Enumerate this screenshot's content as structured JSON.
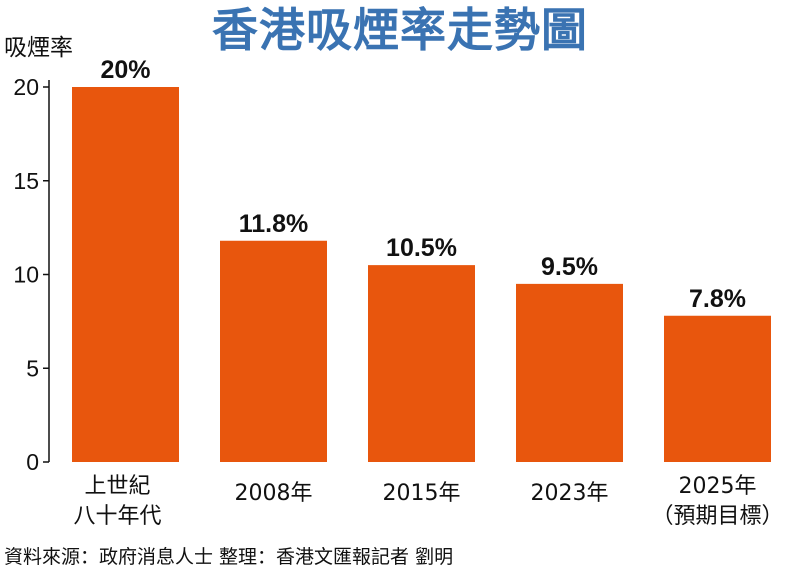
{
  "title": "香港吸煙率走勢圖",
  "source": "資料來源：政府消息人士 整理：香港文匯報記者 劉明",
  "colors": {
    "bar": "#e8560d",
    "title": "#3a73b2"
  },
  "chart_data": {
    "type": "bar",
    "title": "香港吸煙率走勢圖",
    "ylabel": "吸煙率",
    "xlabel": "",
    "ylim": [
      0,
      20
    ],
    "yticks": [
      0,
      5,
      10,
      15,
      20
    ],
    "grid": false,
    "categories": [
      [
        "上世紀",
        "八十年代"
      ],
      [
        "2008年"
      ],
      [
        "2015年"
      ],
      [
        "2023年"
      ],
      [
        "2025年",
        "（預期目標）"
      ]
    ],
    "values": [
      20,
      11.8,
      10.5,
      9.5,
      7.8
    ],
    "data_labels": [
      "20%",
      "11.8%",
      "10.5%",
      "9.5%",
      "7.8%"
    ]
  }
}
